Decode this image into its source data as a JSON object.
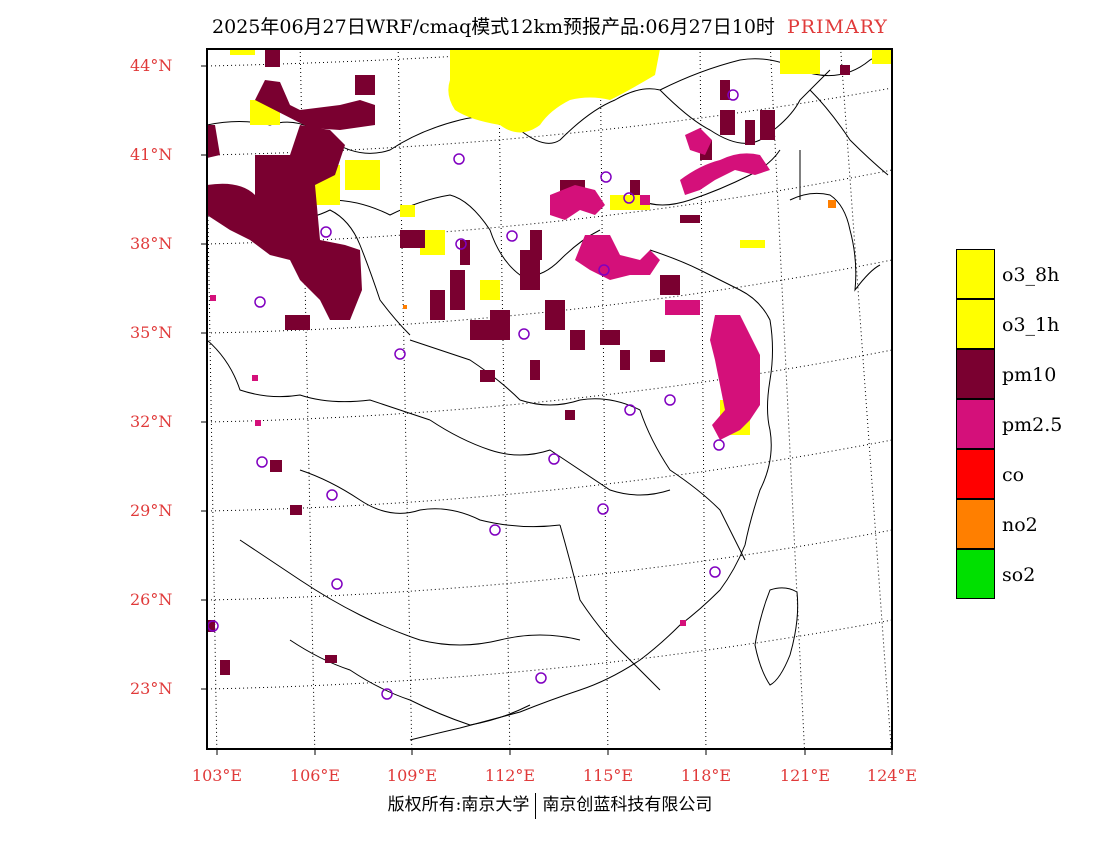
{
  "title": {
    "main": "2025年06月27日WRF/cmaq模式12km预报产品:06月27日10时",
    "tag": "PRIMARY"
  },
  "latitude_labels": [
    "44°N",
    "41°N",
    "38°N",
    "35°N",
    "32°N",
    "29°N",
    "26°N",
    "23°N"
  ],
  "longitude_labels": [
    "103°E",
    "106°E",
    "109°E",
    "112°E",
    "115°E",
    "118°E",
    "121°E",
    "124°E"
  ],
  "legend": [
    {
      "label": "o3_8h",
      "color": "#ffff00"
    },
    {
      "label": "o3_1h",
      "color": "#ffff00"
    },
    {
      "label": "pm10",
      "color": "#7a0030"
    },
    {
      "label": "pm2.5",
      "color": "#d4107a"
    },
    {
      "label": "co",
      "color": "#ff0000"
    },
    {
      "label": "no2",
      "color": "#ff7f00"
    },
    {
      "label": "so2",
      "color": "#00e000"
    }
  ],
  "copyright": {
    "left": "版权所有:南京大学",
    "right": "南京创蓝科技有限公司"
  }
}
